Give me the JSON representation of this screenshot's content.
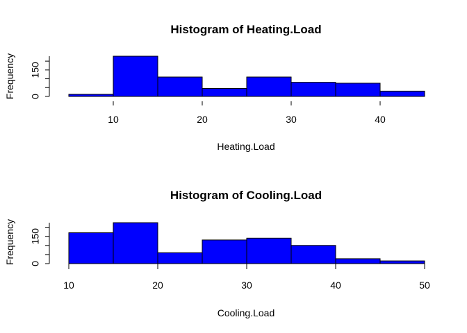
{
  "chart_data": [
    {
      "type": "bar",
      "title": "Histogram of Heating.Load",
      "xlabel": "Heating.Load",
      "ylabel": "Frequency",
      "bar_color": "#0000ff",
      "bin_edges": [
        5,
        10,
        15,
        20,
        25,
        30,
        35,
        40,
        45
      ],
      "values": [
        12,
        228,
        110,
        45,
        110,
        80,
        75,
        30
      ],
      "xticks": [
        10,
        20,
        30,
        40
      ],
      "yticks": [
        0,
        150
      ],
      "ylim": [
        0,
        228
      ],
      "xaxis_line": false
    },
    {
      "type": "bar",
      "title": "Histogram of Cooling.Load",
      "xlabel": "Cooling.Load",
      "ylabel": "Frequency",
      "bar_color": "#0000ff",
      "bin_edges": [
        10,
        15,
        20,
        25,
        30,
        35,
        40,
        45,
        50
      ],
      "values": [
        170,
        225,
        60,
        130,
        140,
        100,
        27,
        15
      ],
      "xticks": [
        10,
        20,
        30,
        40,
        50
      ],
      "yticks": [
        0,
        150
      ],
      "ylim": [
        0,
        225
      ],
      "xaxis_line": true
    }
  ]
}
